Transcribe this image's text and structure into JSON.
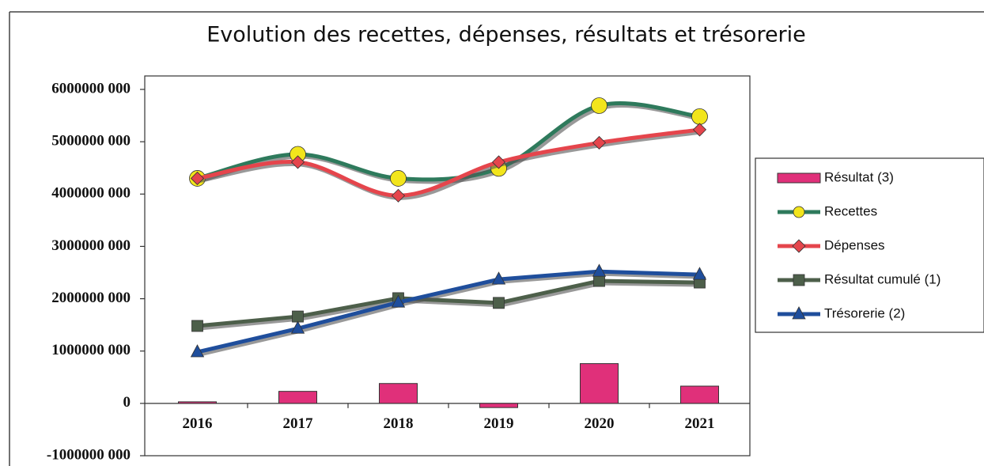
{
  "chart_data": {
    "type": "combo",
    "title": "Evolution des recettes, dépenses, résultats et trésorerie",
    "categories": [
      "2016",
      "2017",
      "2018",
      "2019",
      "2020",
      "2021"
    ],
    "ylim": [
      -1000000,
      6000000
    ],
    "yticks": [
      {
        "value": -1000000,
        "label": "-1000000 000"
      },
      {
        "value": 0,
        "label": "0"
      },
      {
        "value": 1000000,
        "label": "1000000 000"
      },
      {
        "value": 2000000,
        "label": "2000000 000"
      },
      {
        "value": 3000000,
        "label": "3000000 000"
      },
      {
        "value": 4000000,
        "label": "4000000 000"
      },
      {
        "value": 5000000,
        "label": "5000000 000"
      },
      {
        "value": 6000000,
        "label": "6000000 000"
      }
    ],
    "legend": "right",
    "series": [
      {
        "name": "Résultat (3)",
        "type": "bar",
        "color": "#e0307a",
        "values": [
          30000,
          230000,
          380000,
          -80000,
          760000,
          330000
        ]
      },
      {
        "name": "Recettes",
        "type": "line",
        "smooth": true,
        "marker": "circle",
        "color": "#2e7a5c",
        "marker_color": "#f2e51c",
        "values": [
          4300000,
          4760000,
          4300000,
          4490000,
          5690000,
          5480000
        ]
      },
      {
        "name": "Dépenses",
        "type": "line",
        "smooth": true,
        "marker": "diamond",
        "color": "#e5454c",
        "marker_color": "#e5454c",
        "values": [
          4300000,
          4610000,
          3970000,
          4610000,
          4980000,
          5230000
        ]
      },
      {
        "name": "Résultat cumulé (1)",
        "type": "line",
        "smooth": false,
        "marker": "square",
        "color": "#4d5f4a",
        "marker_color": "#4d5f4a",
        "values": [
          1480000,
          1660000,
          2010000,
          1920000,
          2340000,
          2310000
        ]
      },
      {
        "name": "Trésorerie (2)",
        "type": "line",
        "smooth": false,
        "marker": "triangle",
        "color": "#1f4e9c",
        "marker_color": "#1f4e9c",
        "values": [
          980000,
          1430000,
          1930000,
          2370000,
          2520000,
          2460000
        ]
      }
    ]
  }
}
